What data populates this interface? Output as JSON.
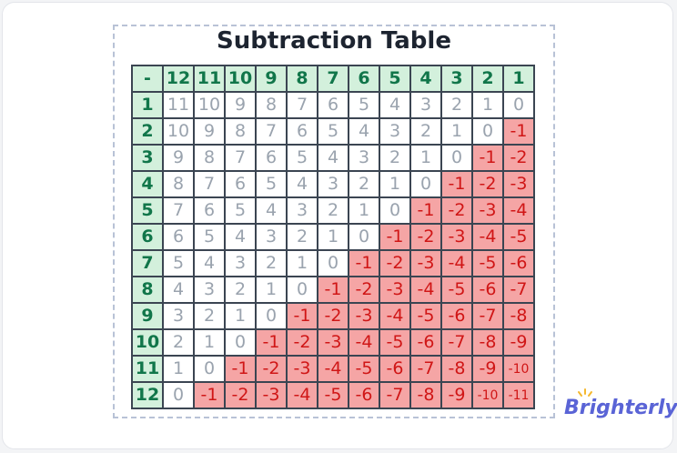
{
  "title": "Subtraction Table",
  "table": {
    "header": [
      "-",
      "12",
      "11",
      "10",
      "9",
      "8",
      "7",
      "6",
      "5",
      "4",
      "3",
      "2",
      "1"
    ],
    "rows": [
      [
        "1",
        "11",
        "10",
        "9",
        "8",
        "7",
        "6",
        "5",
        "4",
        "3",
        "2",
        "1",
        "0"
      ],
      [
        "2",
        "10",
        "9",
        "8",
        "7",
        "6",
        "5",
        "4",
        "3",
        "2",
        "1",
        "0",
        "-1"
      ],
      [
        "3",
        "9",
        "8",
        "7",
        "6",
        "5",
        "4",
        "3",
        "2",
        "1",
        "0",
        "-1",
        "-2"
      ],
      [
        "4",
        "8",
        "7",
        "6",
        "5",
        "4",
        "3",
        "2",
        "1",
        "0",
        "-1",
        "-2",
        "-3"
      ],
      [
        "5",
        "7",
        "6",
        "5",
        "4",
        "3",
        "2",
        "1",
        "0",
        "-1",
        "-2",
        "-3",
        "-4"
      ],
      [
        "6",
        "6",
        "5",
        "4",
        "3",
        "2",
        "1",
        "0",
        "-1",
        "-2",
        "-3",
        "-4",
        "-5"
      ],
      [
        "7",
        "5",
        "4",
        "3",
        "2",
        "1",
        "0",
        "-1",
        "-2",
        "-3",
        "-4",
        "-5",
        "-6"
      ],
      [
        "8",
        "4",
        "3",
        "2",
        "1",
        "0",
        "-1",
        "-2",
        "-3",
        "-4",
        "-5",
        "-6",
        "-7"
      ],
      [
        "9",
        "3",
        "2",
        "1",
        "0",
        "-1",
        "-2",
        "-3",
        "-4",
        "-5",
        "-6",
        "-7",
        "-8"
      ],
      [
        "10",
        "2",
        "1",
        "0",
        "-1",
        "-2",
        "-3",
        "-4",
        "-5",
        "-6",
        "-7",
        "-8",
        "-9"
      ],
      [
        "11",
        "1",
        "0",
        "-1",
        "-2",
        "-3",
        "-4",
        "-5",
        "-6",
        "-7",
        "-8",
        "-9",
        "-10"
      ],
      [
        "12",
        "0",
        "-1",
        "-2",
        "-3",
        "-4",
        "-5",
        "-6",
        "-7",
        "-8",
        "-9",
        "-10",
        "-11"
      ]
    ]
  },
  "logo": "Brighterly"
}
